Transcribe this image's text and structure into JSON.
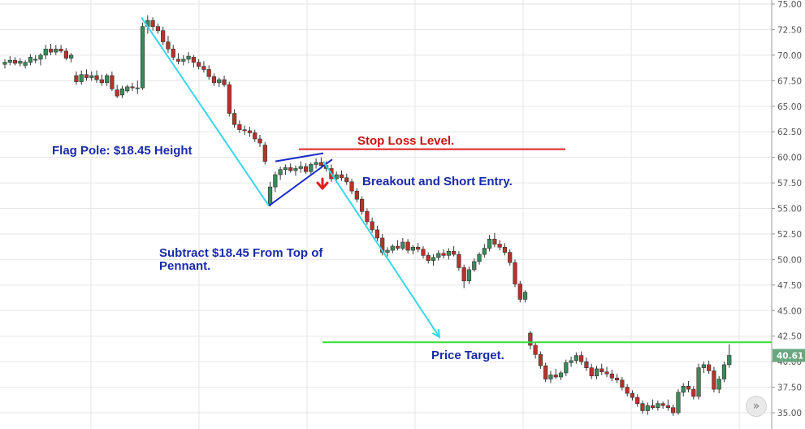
{
  "colors": {
    "up": "#3a8a5a",
    "down": "#b8322a",
    "grid": "#e6e6e6",
    "pole": "#3ad6e8",
    "pennant": "#1a2acc",
    "stop": "#e02020",
    "target": "#33dd33",
    "text_blue": "#1a2aaa",
    "text_red": "#cc1111",
    "last_badge": "#6aa77f"
  },
  "annotations": {
    "flag_pole": "Flag Pole: $18.45 Height",
    "stop_loss": "Stop Loss Level.",
    "breakout": "Breakout and Short Entry.",
    "subtract_line1": "Subtract $18.45 From Top of",
    "subtract_line2": "Pennant.",
    "price_target": "Price Target."
  },
  "last_price_label": "40.61",
  "icons": {
    "scroll": "double-chevron-right-icon",
    "breakout_arrow": "down-arrow-icon"
  },
  "chart_data": {
    "type": "candlestick",
    "title": "",
    "xlabel": "",
    "ylabel": "",
    "ylim": [
      34.5,
      75.3
    ],
    "y_ticks": [
      "35.00",
      "37.50",
      "40.00",
      "42.50",
      "45.00",
      "47.50",
      "50.00",
      "52.50",
      "55.00",
      "57.50",
      "60.00",
      "62.50",
      "65.00",
      "67.50",
      "70.00",
      "72.50",
      "75.00"
    ],
    "grid": true,
    "stop_loss_level": 60.8,
    "price_target_level": 41.9,
    "last_price": 40.61,
    "flag_pole": {
      "from": 73.7,
      "to": 55.25
    },
    "candles": [
      [
        69.1,
        69.6,
        68.7,
        69.3
      ],
      [
        69.3,
        69.9,
        69.0,
        69.5
      ],
      [
        69.5,
        69.8,
        69.0,
        69.2
      ],
      [
        69.2,
        69.7,
        68.9,
        69.4
      ],
      [
        69.0,
        69.5,
        68.7,
        69.3
      ],
      [
        69.3,
        70.1,
        69.0,
        69.8
      ],
      [
        69.5,
        70.0,
        69.2,
        69.6
      ],
      [
        69.6,
        70.2,
        69.0,
        70.0
      ],
      [
        70.0,
        71.0,
        69.6,
        70.6
      ],
      [
        70.6,
        71.1,
        70.0,
        70.3
      ],
      [
        70.3,
        71.0,
        70.0,
        70.6
      ],
      [
        70.6,
        71.0,
        70.2,
        70.4
      ],
      [
        70.4,
        70.7,
        69.5,
        69.7
      ],
      [
        69.7,
        70.2,
        69.3,
        70.0
      ],
      [
        68.0,
        68.4,
        67.1,
        67.4
      ],
      [
        67.4,
        68.5,
        67.1,
        68.1
      ],
      [
        68.1,
        68.6,
        67.5,
        67.8
      ],
      [
        67.8,
        68.4,
        67.5,
        68.0
      ],
      [
        68.0,
        68.5,
        67.3,
        67.6
      ],
      [
        67.6,
        68.1,
        67.0,
        67.3
      ],
      [
        67.3,
        68.2,
        67.0,
        68.0
      ],
      [
        68.0,
        68.4,
        66.5,
        66.7
      ],
      [
        66.6,
        67.1,
        65.8,
        66.0
      ],
      [
        66.1,
        67.0,
        65.8,
        66.7
      ],
      [
        66.5,
        67.1,
        66.3,
        66.9
      ],
      [
        66.9,
        67.3,
        66.5,
        66.8
      ],
      [
        66.8,
        67.5,
        66.2,
        66.8
      ],
      [
        66.8,
        73.2,
        66.6,
        72.8
      ],
      [
        72.8,
        73.9,
        72.1,
        73.4
      ],
      [
        73.4,
        73.7,
        72.4,
        72.8
      ],
      [
        72.8,
        73.1,
        72.1,
        72.4
      ],
      [
        72.4,
        72.8,
        71.0,
        71.3
      ],
      [
        71.3,
        71.9,
        70.2,
        70.6
      ],
      [
        70.6,
        71.0,
        69.5,
        69.8
      ],
      [
        69.6,
        70.2,
        69.1,
        69.4
      ],
      [
        69.4,
        70.0,
        69.0,
        69.6
      ],
      [
        69.6,
        70.3,
        69.2,
        69.9
      ],
      [
        69.8,
        70.0,
        68.8,
        69.3
      ],
      [
        69.3,
        69.6,
        68.6,
        68.9
      ],
      [
        68.9,
        69.4,
        68.3,
        68.6
      ],
      [
        68.6,
        69.0,
        67.6,
        67.9
      ],
      [
        67.9,
        68.2,
        67.0,
        67.3
      ],
      [
        67.3,
        67.8,
        66.9,
        67.6
      ],
      [
        67.6,
        68.0,
        66.9,
        67.1
      ],
      [
        67.1,
        67.4,
        64.0,
        64.3
      ],
      [
        64.3,
        64.7,
        62.9,
        63.2
      ],
      [
        63.2,
        63.6,
        62.4,
        62.7
      ],
      [
        62.7,
        63.1,
        62.2,
        62.6
      ],
      [
        62.6,
        63.0,
        62.0,
        62.4
      ],
      [
        62.4,
        62.7,
        61.5,
        61.8
      ],
      [
        61.8,
        62.2,
        61.0,
        61.4
      ],
      [
        61.2,
        61.5,
        59.3,
        59.6
      ],
      [
        55.4,
        57.6,
        55.2,
        57.1
      ],
      [
        57.1,
        58.6,
        56.6,
        58.3
      ],
      [
        58.3,
        59.1,
        57.8,
        58.8
      ],
      [
        58.8,
        59.3,
        58.3,
        59.0
      ],
      [
        59.0,
        59.4,
        58.5,
        58.7
      ],
      [
        58.7,
        59.2,
        58.2,
        58.9
      ],
      [
        58.9,
        59.6,
        58.5,
        59.1
      ],
      [
        59.1,
        59.4,
        58.4,
        58.6
      ],
      [
        58.6,
        59.5,
        58.3,
        59.3
      ],
      [
        59.3,
        59.9,
        58.9,
        59.5
      ],
      [
        59.5,
        60.0,
        58.9,
        59.2
      ],
      [
        59.2,
        59.6,
        58.6,
        58.9
      ],
      [
        58.9,
        59.3,
        57.6,
        57.9
      ],
      [
        57.9,
        58.6,
        57.5,
        58.3
      ],
      [
        58.3,
        58.7,
        57.7,
        58.0
      ],
      [
        58.0,
        58.4,
        57.3,
        57.6
      ],
      [
        57.6,
        57.9,
        56.4,
        56.7
      ],
      [
        56.7,
        57.0,
        55.6,
        55.9
      ],
      [
        55.9,
        56.2,
        54.4,
        54.7
      ],
      [
        54.7,
        55.0,
        53.4,
        53.7
      ],
      [
        53.7,
        54.1,
        52.6,
        52.9
      ],
      [
        52.9,
        53.3,
        51.8,
        52.1
      ],
      [
        52.1,
        52.5,
        50.4,
        50.7
      ],
      [
        50.7,
        51.2,
        50.3,
        50.9
      ],
      [
        50.9,
        51.5,
        50.6,
        51.3
      ],
      [
        51.3,
        51.9,
        50.9,
        51.1
      ],
      [
        51.1,
        52.1,
        50.9,
        51.7
      ],
      [
        51.7,
        52.0,
        50.6,
        50.9
      ],
      [
        50.9,
        51.4,
        50.5,
        51.2
      ],
      [
        51.2,
        51.6,
        50.7,
        51.0
      ],
      [
        51.0,
        51.3,
        50.1,
        50.4
      ],
      [
        50.4,
        50.7,
        49.6,
        49.9
      ],
      [
        49.9,
        50.5,
        49.4,
        50.2
      ],
      [
        50.2,
        50.9,
        49.9,
        50.6
      ],
      [
        50.6,
        51.0,
        50.1,
        50.4
      ],
      [
        50.4,
        51.1,
        50.0,
        50.8
      ],
      [
        50.8,
        51.3,
        50.3,
        50.5
      ],
      [
        50.5,
        50.8,
        48.9,
        49.2
      ],
      [
        49.2,
        49.5,
        47.2,
        47.9
      ],
      [
        47.9,
        49.3,
        47.6,
        49.0
      ],
      [
        49.0,
        50.1,
        48.8,
        49.8
      ],
      [
        49.8,
        50.7,
        49.5,
        50.5
      ],
      [
        50.5,
        51.5,
        50.2,
        51.1
      ],
      [
        51.1,
        52.4,
        50.8,
        52.0
      ],
      [
        52.0,
        52.6,
        51.2,
        51.5
      ],
      [
        51.5,
        51.9,
        50.9,
        51.2
      ],
      [
        51.2,
        51.6,
        50.4,
        50.7
      ],
      [
        50.7,
        51.0,
        49.4,
        49.7
      ],
      [
        49.7,
        50.0,
        47.3,
        47.6
      ],
      [
        47.6,
        47.9,
        45.8,
        46.1
      ],
      [
        46.1,
        47.0,
        45.8,
        46.8
      ],
      [
        42.8,
        43.0,
        41.2,
        41.6
      ],
      [
        41.6,
        41.9,
        40.3,
        40.7
      ],
      [
        40.7,
        41.0,
        39.3,
        39.6
      ],
      [
        39.6,
        39.9,
        38.0,
        38.3
      ],
      [
        38.3,
        39.1,
        37.9,
        38.7
      ],
      [
        38.7,
        39.3,
        38.3,
        38.5
      ],
      [
        38.5,
        39.1,
        38.2,
        38.9
      ],
      [
        38.9,
        40.2,
        38.6,
        39.9
      ],
      [
        39.9,
        40.5,
        39.5,
        40.1
      ],
      [
        40.1,
        40.9,
        39.8,
        40.6
      ],
      [
        40.6,
        41.0,
        39.7,
        40.0
      ],
      [
        40.0,
        40.4,
        39.1,
        39.4
      ],
      [
        39.4,
        39.8,
        38.3,
        38.6
      ],
      [
        38.6,
        39.6,
        38.3,
        39.3
      ],
      [
        39.3,
        39.8,
        38.7,
        39.0
      ],
      [
        39.0,
        39.5,
        38.5,
        38.8
      ],
      [
        38.8,
        39.2,
        38.1,
        38.4
      ],
      [
        38.4,
        38.8,
        37.9,
        38.2
      ],
      [
        38.2,
        38.5,
        37.2,
        37.5
      ],
      [
        37.5,
        37.8,
        36.6,
        36.9
      ],
      [
        36.9,
        37.2,
        36.2,
        36.5
      ],
      [
        36.5,
        36.8,
        35.6,
        35.9
      ],
      [
        35.9,
        36.2,
        34.9,
        35.2
      ],
      [
        35.2,
        36.0,
        34.8,
        35.7
      ],
      [
        35.7,
        36.3,
        35.3,
        35.5
      ],
      [
        35.5,
        36.2,
        35.2,
        35.9
      ],
      [
        35.9,
        36.1,
        35.4,
        35.7
      ],
      [
        35.7,
        36.3,
        35.2,
        35.5
      ],
      [
        35.5,
        35.8,
        34.7,
        35.0
      ],
      [
        35.0,
        37.3,
        34.8,
        37.0
      ],
      [
        37.0,
        37.9,
        36.6,
        37.6
      ],
      [
        37.6,
        38.1,
        37.0,
        37.3
      ],
      [
        37.3,
        37.6,
        36.3,
        36.6
      ],
      [
        36.6,
        39.8,
        36.3,
        39.4
      ],
      [
        39.4,
        40.0,
        38.9,
        39.7
      ],
      [
        39.7,
        40.1,
        38.8,
        39.1
      ],
      [
        39.1,
        39.5,
        37.0,
        37.3
      ],
      [
        37.3,
        38.6,
        36.9,
        38.3
      ],
      [
        38.3,
        40.0,
        38.0,
        39.7
      ],
      [
        39.7,
        41.7,
        39.4,
        40.61
      ]
    ]
  }
}
